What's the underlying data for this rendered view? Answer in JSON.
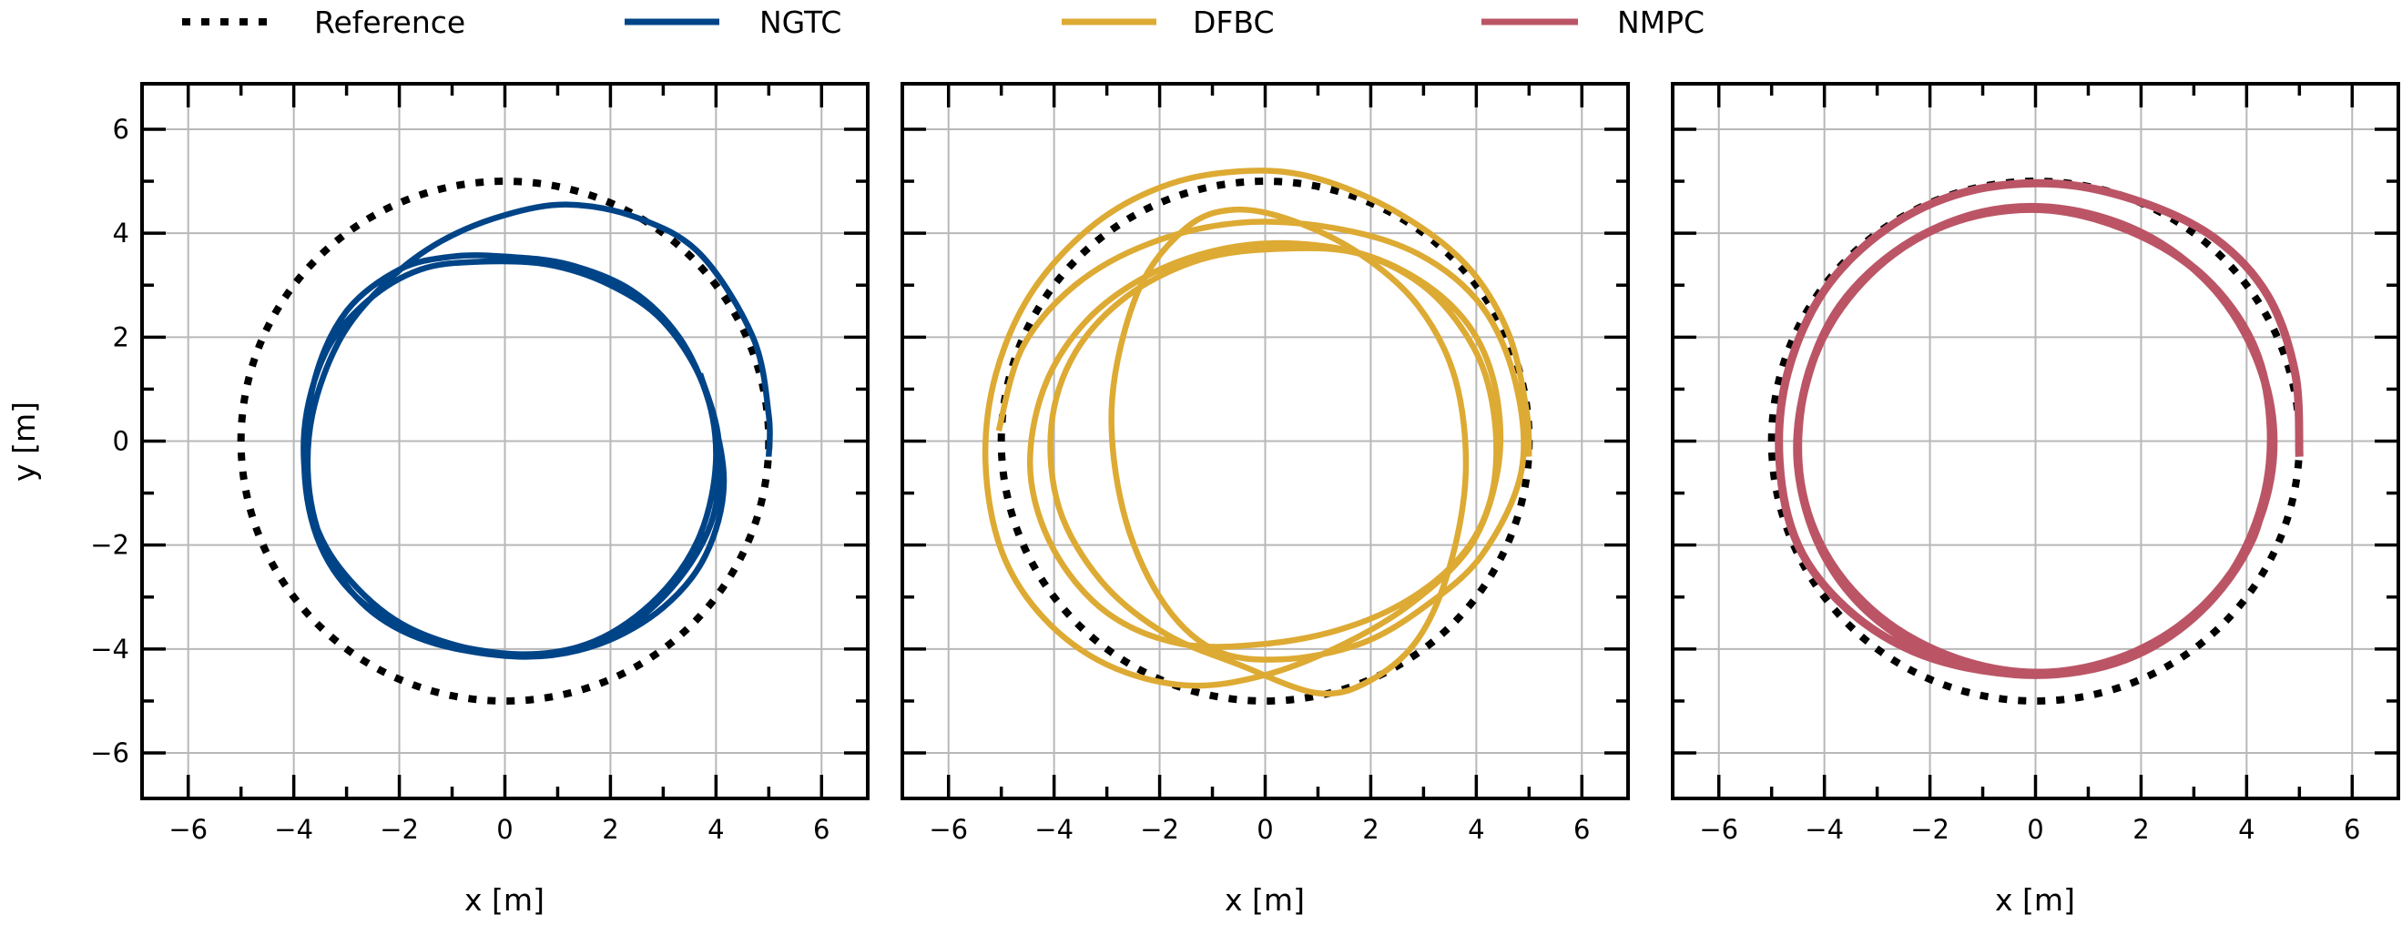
{
  "chart_data": {
    "type": "line",
    "legend": {
      "placement": "top-center",
      "entries": [
        {
          "label": "Reference",
          "color": "#000000",
          "style": "dotted"
        },
        {
          "label": "NGTC",
          "color": "#004488",
          "style": "solid"
        },
        {
          "label": "DFBC",
          "color": "#DDAA33",
          "style": "solid"
        },
        {
          "label": "NMPC",
          "color": "#BB5566",
          "style": "solid"
        }
      ]
    },
    "reference": {
      "name": "Reference",
      "shape": "circle",
      "center": [
        0,
        0
      ],
      "radius": 5
    },
    "xlim": [
      -6.875,
      6.875
    ],
    "ylim": [
      -6.875,
      6.875
    ],
    "xticks": [
      -6,
      -4,
      -2,
      0,
      2,
      4,
      6
    ],
    "yticks": [
      -6,
      -4,
      -2,
      0,
      2,
      4,
      6
    ],
    "xtick_labels": [
      "−6",
      "−4",
      "−2",
      "0",
      "2",
      "4",
      "6"
    ],
    "ytick_labels": [
      "−6",
      "−4",
      "−2",
      "0",
      "2",
      "4",
      "6"
    ],
    "xlabel": "x [m]",
    "ylabel": "y [m]",
    "grid": true,
    "panels": [
      {
        "name": "NGTC",
        "color": "#004488",
        "points": [
          [
            5,
            -0.3
          ],
          [
            5,
            0.5
          ],
          [
            4.7,
            2.0
          ],
          [
            3.7,
            3.6
          ],
          [
            2.5,
            4.3
          ],
          [
            1.2,
            4.55
          ],
          [
            0,
            4.35
          ],
          [
            -1.2,
            3.85
          ],
          [
            -2.2,
            3.1
          ],
          [
            -3.1,
            2.0
          ],
          [
            -3.65,
            0.5
          ],
          [
            -3.7,
            -1.0
          ],
          [
            -3.3,
            -2.3
          ],
          [
            -2.5,
            -3.3
          ],
          [
            -1.3,
            -3.9
          ],
          [
            0.4,
            -4.15
          ],
          [
            1.8,
            -3.9
          ],
          [
            3.0,
            -3.2
          ],
          [
            3.8,
            -2.2
          ],
          [
            4.15,
            -0.8
          ],
          [
            3.85,
            0.8
          ],
          [
            3.3,
            2.0
          ],
          [
            2.4,
            2.9
          ],
          [
            1.2,
            3.4
          ],
          [
            0,
            3.55
          ],
          [
            -1.0,
            3.55
          ],
          [
            -2.0,
            3.3
          ],
          [
            -3.0,
            2.5
          ],
          [
            -3.6,
            1.2
          ],
          [
            -3.8,
            -0.5
          ],
          [
            -3.5,
            -2.0
          ],
          [
            -2.7,
            -3.1
          ],
          [
            -1.4,
            -3.8
          ],
          [
            0.3,
            -4.1
          ],
          [
            1.7,
            -3.85
          ],
          [
            2.9,
            -3.0
          ],
          [
            3.7,
            -1.8
          ],
          [
            4.0,
            -0.3
          ],
          [
            3.75,
            1.1
          ],
          [
            3.0,
            2.3
          ],
          [
            2.0,
            3.0
          ],
          [
            0.8,
            3.4
          ],
          [
            -0.5,
            3.45
          ],
          [
            -1.6,
            3.3
          ],
          [
            -2.6,
            2.7
          ],
          [
            -3.4,
            1.7
          ],
          [
            -3.8,
            0.2
          ],
          [
            -3.65,
            -1.4
          ],
          [
            -3.0,
            -2.6
          ],
          [
            -1.8,
            -3.6
          ],
          [
            0,
            -4.1
          ],
          [
            1.7,
            -3.9
          ],
          [
            3.0,
            -3.0
          ],
          [
            3.9,
            -1.6
          ],
          [
            4.05,
            0.0
          ],
          [
            3.7,
            1.3
          ]
        ]
      },
      {
        "name": "DFBC",
        "color": "#DDAA33",
        "points": [
          [
            5,
            -0.3
          ],
          [
            4.95,
            0.6
          ],
          [
            4.6,
            2.1
          ],
          [
            3.8,
            3.4
          ],
          [
            2.5,
            4.4
          ],
          [
            1.0,
            5.05
          ],
          [
            -0.3,
            5.2
          ],
          [
            -1.8,
            4.95
          ],
          [
            -3.2,
            4.2
          ],
          [
            -4.4,
            2.9
          ],
          [
            -5.1,
            1.3
          ],
          [
            -5.3,
            -0.4
          ],
          [
            -5.0,
            -2.1
          ],
          [
            -4.2,
            -3.4
          ],
          [
            -3.0,
            -4.3
          ],
          [
            -1.5,
            -4.7
          ],
          [
            0,
            -4.5
          ],
          [
            1.5,
            -3.9
          ],
          [
            2.8,
            -3.1
          ],
          [
            3.9,
            -2.0
          ],
          [
            4.4,
            -0.6
          ],
          [
            4.4,
            0.8
          ],
          [
            4.0,
            2.0
          ],
          [
            3.2,
            2.9
          ],
          [
            2.0,
            3.55
          ],
          [
            0.6,
            3.8
          ],
          [
            -0.8,
            3.7
          ],
          [
            -2.2,
            3.2
          ],
          [
            -3.4,
            2.3
          ],
          [
            -4.2,
            1.0
          ],
          [
            -4.45,
            -0.6
          ],
          [
            -4.0,
            -2.1
          ],
          [
            -3.0,
            -3.3
          ],
          [
            -1.6,
            -3.9
          ],
          [
            0,
            -3.9
          ],
          [
            1.5,
            -3.6
          ],
          [
            2.8,
            -3.0
          ],
          [
            3.8,
            -2.1
          ],
          [
            4.3,
            -1.0
          ],
          [
            4.35,
            0.4
          ],
          [
            4.0,
            1.7
          ],
          [
            3.1,
            2.9
          ],
          [
            1.8,
            3.6
          ],
          [
            0.3,
            3.7
          ],
          [
            -1.2,
            3.5
          ],
          [
            -2.6,
            2.8
          ],
          [
            -3.6,
            1.7
          ],
          [
            -4.05,
            0.3
          ],
          [
            -3.9,
            -1.3
          ],
          [
            -3.1,
            -2.7
          ],
          [
            -1.9,
            -3.7
          ],
          [
            -0.5,
            -4.3
          ],
          [
            1.0,
            -4.85
          ],
          [
            2.0,
            -4.6
          ],
          [
            2.9,
            -3.8
          ],
          [
            3.5,
            -2.4
          ],
          [
            3.8,
            -0.6
          ],
          [
            3.6,
            1.2
          ],
          [
            2.9,
            2.6
          ],
          [
            1.8,
            3.6
          ],
          [
            0.5,
            4.25
          ],
          [
            -0.6,
            4.45
          ],
          [
            -1.5,
            4.1
          ],
          [
            -2.4,
            2.9
          ],
          [
            -2.9,
            0.8
          ],
          [
            -2.7,
            -1.3
          ],
          [
            -2.0,
            -3.0
          ],
          [
            -1.0,
            -4.0
          ],
          [
            0.3,
            -4.2
          ],
          [
            1.8,
            -3.9
          ],
          [
            3.0,
            -3.2
          ],
          [
            4.1,
            -2.2
          ],
          [
            4.85,
            -0.6
          ],
          [
            4.75,
            1.1
          ],
          [
            4.1,
            2.6
          ],
          [
            2.9,
            3.6
          ],
          [
            1.3,
            4.1
          ],
          [
            -0.5,
            4.2
          ],
          [
            -2.2,
            3.8
          ],
          [
            -3.6,
            3.0
          ],
          [
            -4.6,
            1.8
          ],
          [
            -5.05,
            0.2
          ]
        ]
      },
      {
        "name": "NMPC",
        "color": "#BB5566",
        "points": [
          [
            5,
            -0.3
          ],
          [
            4.92,
            1.3
          ],
          [
            4.4,
            2.8
          ],
          [
            3.4,
            3.9
          ],
          [
            2.0,
            4.6
          ],
          [
            0.4,
            4.95
          ],
          [
            -1.3,
            4.8
          ],
          [
            -2.8,
            4.1
          ],
          [
            -4.0,
            2.9
          ],
          [
            -4.7,
            1.3
          ],
          [
            -4.85,
            -0.4
          ],
          [
            -4.5,
            -2.0
          ],
          [
            -3.6,
            -3.2
          ],
          [
            -2.3,
            -4.05
          ],
          [
            -0.7,
            -4.45
          ],
          [
            0.9,
            -4.4
          ],
          [
            2.4,
            -3.8
          ],
          [
            3.6,
            -2.7
          ],
          [
            4.3,
            -1.2
          ],
          [
            4.45,
            0.4
          ],
          [
            4.1,
            1.9
          ],
          [
            3.2,
            3.15
          ],
          [
            1.9,
            4.0
          ],
          [
            0.3,
            4.45
          ],
          [
            -1.3,
            4.3
          ],
          [
            -2.7,
            3.6
          ],
          [
            -3.8,
            2.4
          ],
          [
            -4.4,
            0.9
          ],
          [
            -4.45,
            -0.8
          ],
          [
            -3.9,
            -2.3
          ],
          [
            -2.8,
            -3.5
          ],
          [
            -1.3,
            -4.25
          ],
          [
            0.3,
            -4.45
          ],
          [
            1.9,
            -4.05
          ],
          [
            3.2,
            -3.15
          ],
          [
            4.1,
            -1.85
          ],
          [
            4.5,
            -0.3
          ],
          [
            4.3,
            1.3
          ],
          [
            3.5,
            2.8
          ],
          [
            2.2,
            3.9
          ],
          [
            0.6,
            4.45
          ],
          [
            -1.0,
            4.4
          ],
          [
            -2.5,
            3.75
          ],
          [
            -3.7,
            2.6
          ],
          [
            -4.35,
            1.1
          ],
          [
            -4.5,
            -0.5
          ],
          [
            -4.05,
            -2.1
          ],
          [
            -3.1,
            -3.35
          ],
          [
            -1.7,
            -4.2
          ],
          [
            0,
            -4.5
          ],
          [
            1.7,
            -4.2
          ],
          [
            3.1,
            -3.3
          ],
          [
            4.1,
            -1.9
          ],
          [
            4.5,
            -0.2
          ]
        ]
      }
    ]
  }
}
